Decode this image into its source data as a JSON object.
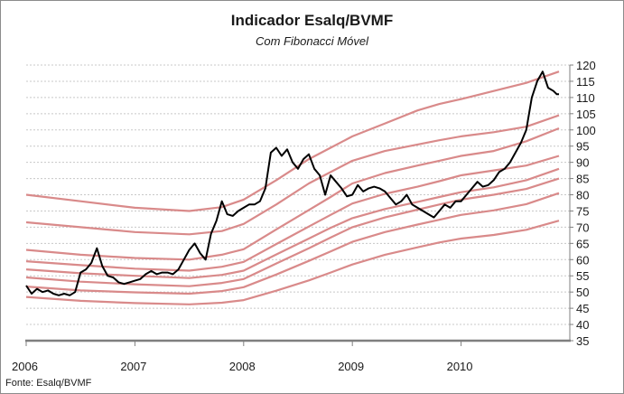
{
  "chart_data": {
    "type": "line",
    "title": "Indicador Esalq/BVMF",
    "subtitle": "Com Fibonacci Móvel",
    "source": "Fonte: Esalq/BVMF",
    "xlabel": "",
    "ylabel": "",
    "x_tick_labels": [
      "2006",
      "2007",
      "2008",
      "2009",
      "2010"
    ],
    "x_ticks": [
      2006,
      2007,
      2008,
      2009,
      2010
    ],
    "xlim": [
      2006,
      2011
    ],
    "ylim": [
      35,
      120
    ],
    "y_ticks": [
      35,
      40,
      45,
      50,
      55,
      60,
      65,
      70,
      75,
      80,
      85,
      90,
      95,
      100,
      105,
      110,
      115,
      120
    ],
    "grid": "horizontal dotted",
    "legend": "none",
    "colors": {
      "price": "#000000",
      "fibonacci": "#d98a8a",
      "grid": "#c8c8c8",
      "axis": "#7f7f7f"
    },
    "series": [
      {
        "role": "price",
        "x": [
          2006.0,
          2006.05,
          2006.1,
          2006.15,
          2006.2,
          2006.25,
          2006.3,
          2006.35,
          2006.4,
          2006.45,
          2006.5,
          2006.55,
          2006.6,
          2006.65,
          2006.7,
          2006.75,
          2006.8,
          2006.85,
          2006.9,
          2006.95,
          2007.0,
          2007.05,
          2007.1,
          2007.15,
          2007.2,
          2007.25,
          2007.3,
          2007.35,
          2007.4,
          2007.45,
          2007.5,
          2007.55,
          2007.6,
          2007.65,
          2007.7,
          2007.75,
          2007.8,
          2007.85,
          2007.9,
          2007.95,
          2008.0,
          2008.05,
          2008.1,
          2008.15,
          2008.2,
          2008.25,
          2008.3,
          2008.35,
          2008.4,
          2008.45,
          2008.5,
          2008.55,
          2008.6,
          2008.65,
          2008.7,
          2008.75,
          2008.8,
          2008.85,
          2008.9,
          2008.95,
          2009.0,
          2009.05,
          2009.1,
          2009.15,
          2009.2,
          2009.25,
          2009.3,
          2009.35,
          2009.4,
          2009.45,
          2009.5,
          2009.55,
          2009.6,
          2009.65,
          2009.7,
          2009.75,
          2009.8,
          2009.85,
          2009.9,
          2009.95,
          2010.0,
          2010.05,
          2010.1,
          2010.15,
          2010.2,
          2010.25,
          2010.3,
          2010.35,
          2010.4,
          2010.45,
          2010.5,
          2010.55,
          2010.6,
          2010.65,
          2010.7,
          2010.75,
          2010.8,
          2010.85,
          2010.88,
          2010.9
        ],
        "y": [
          52,
          49.5,
          51,
          50,
          50.5,
          49.5,
          49,
          49.5,
          49,
          50,
          56,
          57,
          59,
          63.5,
          58,
          55,
          54.5,
          53,
          52.5,
          53,
          53.5,
          54,
          55.5,
          56.5,
          55.5,
          56,
          56,
          55.5,
          57,
          60,
          63,
          65,
          62,
          60,
          68,
          72,
          78,
          74,
          73.5,
          75,
          76,
          77,
          77,
          78,
          82,
          93,
          94.5,
          92,
          94,
          90,
          88,
          91,
          92.5,
          88,
          86,
          80,
          86,
          84,
          82,
          79.5,
          80,
          83,
          81,
          82,
          82.5,
          82,
          81,
          79,
          77,
          78,
          80,
          77,
          76,
          75,
          74,
          73,
          75,
          77,
          76,
          78,
          78,
          80,
          82,
          84,
          82.5,
          83,
          84.5,
          87,
          88,
          90,
          93,
          96,
          100,
          110,
          115,
          118,
          113,
          112,
          111,
          111
        ]
      },
      {
        "role": "fibonacci",
        "x": [
          2006.0,
          2006.5,
          2007.0,
          2007.5,
          2007.8,
          2008.0,
          2008.3,
          2008.6,
          2008.8,
          2009.0,
          2009.3,
          2009.6,
          2009.8,
          2010.0,
          2010.3,
          2010.6,
          2010.9
        ],
        "y": [
          48.5,
          47.3,
          46.6,
          46.2,
          46.7,
          47.5,
          50.4,
          53.6,
          56,
          58.5,
          61.5,
          63.8,
          65.3,
          66.5,
          67.6,
          69.2,
          72
        ]
      },
      {
        "role": "fibonacci",
        "x": [
          2006.0,
          2006.5,
          2007.0,
          2007.5,
          2007.8,
          2008.0,
          2008.3,
          2008.6,
          2008.8,
          2009.0,
          2009.3,
          2009.6,
          2009.8,
          2010.0,
          2010.3,
          2010.6,
          2010.9
        ],
        "y": [
          51.7,
          50.5,
          49.9,
          49.5,
          50.3,
          51.5,
          55.4,
          59.6,
          62.5,
          65.5,
          68.5,
          70.8,
          72.3,
          73.8,
          75.2,
          77.1,
          80.5
        ]
      },
      {
        "role": "fibonacci",
        "x": [
          2006.0,
          2006.5,
          2007.0,
          2007.5,
          2007.8,
          2008.0,
          2008.3,
          2008.6,
          2008.8,
          2009.0,
          2009.3,
          2009.6,
          2009.8,
          2010.0,
          2010.3,
          2010.6,
          2010.9
        ],
        "y": [
          54.5,
          53.2,
          52.4,
          51.8,
          52.8,
          54.0,
          58.8,
          63.5,
          66.8,
          70.0,
          73.0,
          75.4,
          77.0,
          78.5,
          80.0,
          81.8,
          85.0
        ]
      },
      {
        "role": "fibonacci",
        "x": [
          2006.0,
          2006.5,
          2007.0,
          2007.5,
          2007.8,
          2008.0,
          2008.3,
          2008.6,
          2008.8,
          2009.0,
          2009.3,
          2009.6,
          2009.8,
          2010.0,
          2010.3,
          2010.6,
          2010.9
        ],
        "y": [
          57.0,
          55.8,
          55.0,
          54.3,
          55.3,
          56.6,
          61.6,
          66.5,
          69.8,
          72.8,
          75.6,
          77.8,
          79.3,
          80.8,
          82.3,
          84.5,
          88.0
        ]
      },
      {
        "role": "fibonacci",
        "x": [
          2006.0,
          2006.5,
          2007.0,
          2007.5,
          2007.8,
          2008.0,
          2008.3,
          2008.6,
          2008.8,
          2009.0,
          2009.3,
          2009.6,
          2009.8,
          2010.0,
          2010.3,
          2010.6,
          2010.9
        ],
        "y": [
          59.5,
          58.3,
          57.2,
          56.6,
          57.8,
          59.3,
          64.8,
          70.2,
          73.8,
          77.3,
          80.3,
          82.5,
          84.2,
          86.0,
          87.5,
          89.0,
          92.0
        ]
      },
      {
        "role": "fibonacci",
        "x": [
          2006.0,
          2006.5,
          2007.0,
          2007.5,
          2007.8,
          2008.0,
          2008.3,
          2008.6,
          2008.8,
          2009.0,
          2009.3,
          2009.6,
          2009.8,
          2010.0,
          2010.3,
          2010.6,
          2010.9
        ],
        "y": [
          63.0,
          61.5,
          60.5,
          60.0,
          61.5,
          63.2,
          69.3,
          75.3,
          79.3,
          83.5,
          86.7,
          89.0,
          90.5,
          92.0,
          93.5,
          96.5,
          100.5
        ]
      },
      {
        "role": "fibonacci",
        "x": [
          2006.0,
          2006.5,
          2007.0,
          2007.5,
          2007.8,
          2008.0,
          2008.3,
          2008.6,
          2008.8,
          2009.0,
          2009.3,
          2009.6,
          2009.8,
          2010.0,
          2010.3,
          2010.6,
          2010.9
        ],
        "y": [
          71.5,
          70.0,
          68.5,
          67.8,
          68.8,
          71.0,
          77.0,
          83.5,
          87.0,
          90.5,
          93.5,
          95.5,
          96.8,
          98.0,
          99.3,
          101.0,
          104.5
        ]
      },
      {
        "role": "fibonacci",
        "x": [
          2006.0,
          2006.5,
          2007.0,
          2007.5,
          2007.8,
          2008.0,
          2008.3,
          2008.6,
          2008.8,
          2009.0,
          2009.3,
          2009.6,
          2009.8,
          2010.0,
          2010.3,
          2010.6,
          2010.9
        ],
        "y": [
          80.0,
          78.0,
          76.0,
          75.0,
          76.2,
          78.5,
          84.5,
          91.0,
          94.5,
          98.0,
          102.0,
          106.0,
          108.0,
          109.5,
          112.0,
          114.5,
          118.0
        ]
      }
    ]
  }
}
